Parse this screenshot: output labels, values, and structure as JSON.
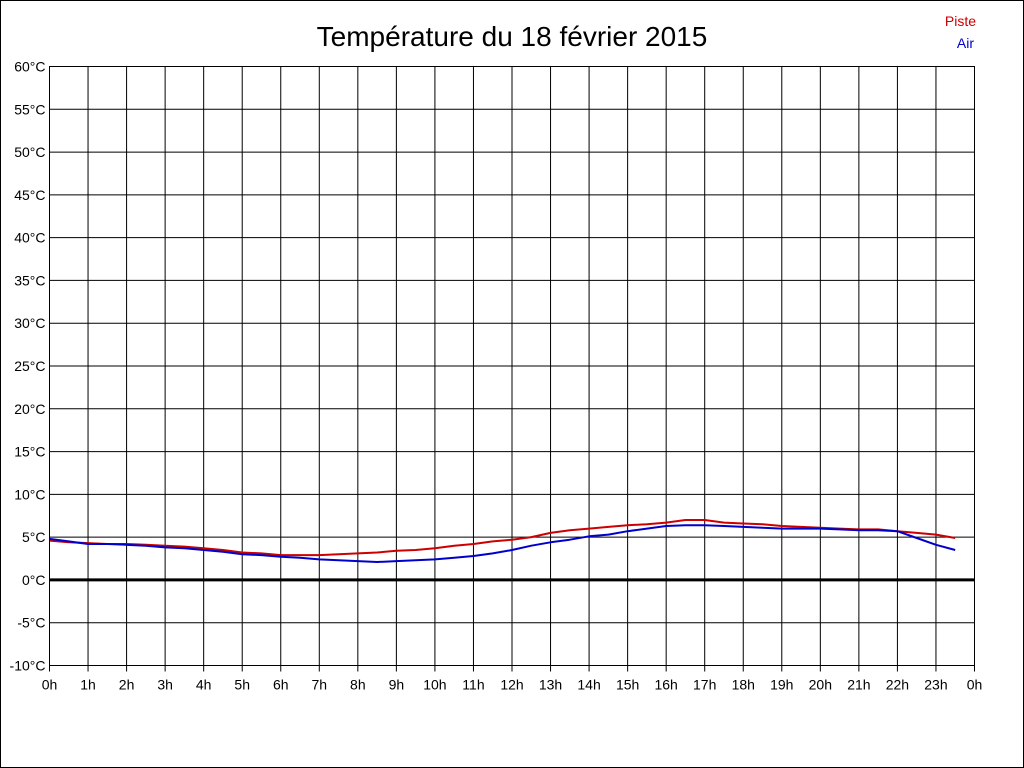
{
  "chart_data": {
    "type": "line",
    "title": "Température du 18 février 2015",
    "xlabel": "",
    "ylabel": "",
    "x_ticks": [
      "0h",
      "1h",
      "2h",
      "3h",
      "4h",
      "5h",
      "6h",
      "7h",
      "8h",
      "9h",
      "10h",
      "11h",
      "12h",
      "13h",
      "14h",
      "15h",
      "16h",
      "17h",
      "18h",
      "19h",
      "20h",
      "21h",
      "22h",
      "23h",
      "0h"
    ],
    "y_ticks": [
      "-10°C",
      "-5°C",
      "0°C",
      "5°C",
      "10°C",
      "15°C",
      "20°C",
      "25°C",
      "30°C",
      "35°C",
      "40°C",
      "45°C",
      "50°C",
      "55°C",
      "60°C"
    ],
    "xlim": [
      0,
      24
    ],
    "ylim": [
      -10,
      60
    ],
    "grid": true,
    "zero_line": true,
    "legend_position": "top-right",
    "x": [
      0,
      0.5,
      1,
      1.5,
      2,
      2.5,
      3,
      3.5,
      4,
      4.5,
      5,
      5.5,
      6,
      6.5,
      7,
      7.5,
      8,
      8.5,
      9,
      9.5,
      10,
      10.5,
      11,
      11.5,
      12,
      12.5,
      13,
      13.5,
      14,
      14.5,
      15,
      15.5,
      16,
      16.5,
      17,
      17.5,
      18,
      18.5,
      19,
      19.5,
      20,
      20.5,
      21,
      21.5,
      22,
      22.5,
      23,
      23.5
    ],
    "series": [
      {
        "name": "Piste",
        "color": "#cc0000",
        "values": [
          4.6,
          4.4,
          4.3,
          4.2,
          4.2,
          4.1,
          4.0,
          3.9,
          3.7,
          3.5,
          3.2,
          3.1,
          2.9,
          2.9,
          2.9,
          3.0,
          3.1,
          3.2,
          3.4,
          3.5,
          3.7,
          4.0,
          4.2,
          4.5,
          4.7,
          5.0,
          5.5,
          5.8,
          6.0,
          6.2,
          6.4,
          6.5,
          6.7,
          7.0,
          7.0,
          6.7,
          6.6,
          6.5,
          6.3,
          6.2,
          6.1,
          6.0,
          5.9,
          5.9,
          5.7,
          5.5,
          5.3,
          4.9
        ]
      },
      {
        "name": "Air",
        "color": "#0000cc",
        "values": [
          4.8,
          4.5,
          4.2,
          4.2,
          4.1,
          4.0,
          3.8,
          3.7,
          3.5,
          3.3,
          3.0,
          2.9,
          2.7,
          2.6,
          2.4,
          2.3,
          2.2,
          2.1,
          2.2,
          2.3,
          2.4,
          2.6,
          2.8,
          3.1,
          3.5,
          4.0,
          4.4,
          4.7,
          5.1,
          5.3,
          5.7,
          6.0,
          6.3,
          6.4,
          6.4,
          6.3,
          6.2,
          6.1,
          6.0,
          6.0,
          6.0,
          5.9,
          5.8,
          5.8,
          5.7,
          4.9,
          4.1,
          3.5
        ]
      }
    ]
  }
}
